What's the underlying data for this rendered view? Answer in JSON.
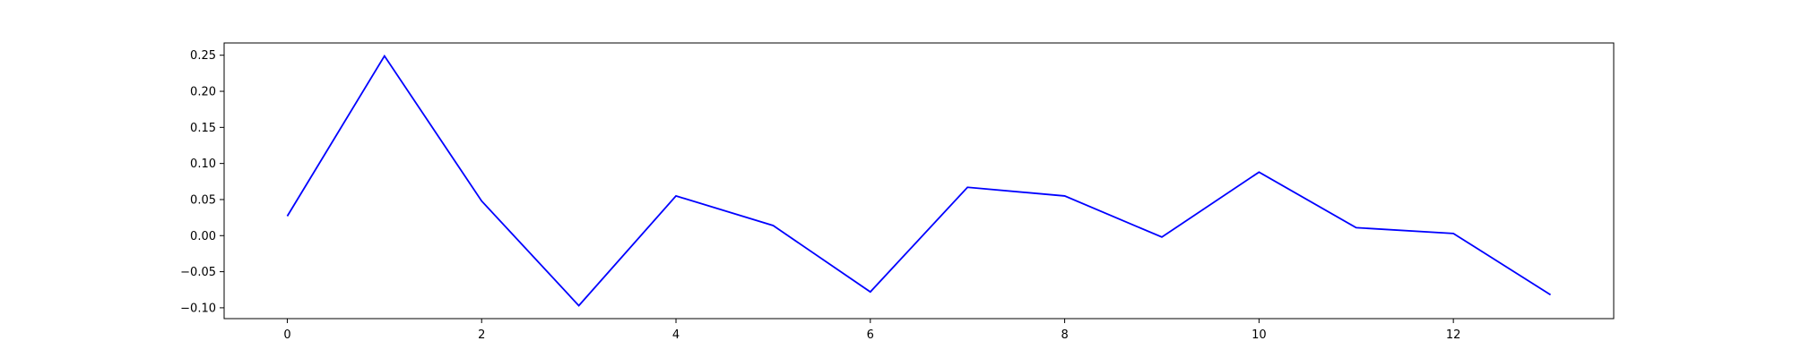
{
  "chart_data": {
    "type": "line",
    "title": "",
    "xlabel": "",
    "ylabel": "",
    "x": [
      0,
      1,
      2,
      3,
      4,
      5,
      6,
      7,
      8,
      9,
      10,
      11,
      12,
      13
    ],
    "series": [
      {
        "values": [
          0.027,
          0.249,
          0.048,
          -0.097,
          0.055,
          0.014,
          -0.078,
          0.067,
          0.055,
          -0.002,
          0.088,
          0.011,
          0.003,
          -0.082
        ],
        "color": "#0000ff"
      }
    ],
    "xlim": [
      -0.65,
      13.65
    ],
    "ylim": [
      -0.115,
      0.267
    ],
    "xticks": [
      0,
      2,
      4,
      6,
      8,
      10,
      12
    ],
    "xtick_labels": [
      "0",
      "2",
      "4",
      "6",
      "8",
      "10",
      "12"
    ],
    "yticks": [
      -0.1,
      -0.05,
      0.0,
      0.05,
      0.1,
      0.15,
      0.2,
      0.25
    ],
    "ytick_labels": [
      "−0.10",
      "−0.05",
      "0.00",
      "0.05",
      "0.10",
      "0.15",
      "0.20",
      "0.25"
    ],
    "grid": false,
    "legend": "none"
  }
}
